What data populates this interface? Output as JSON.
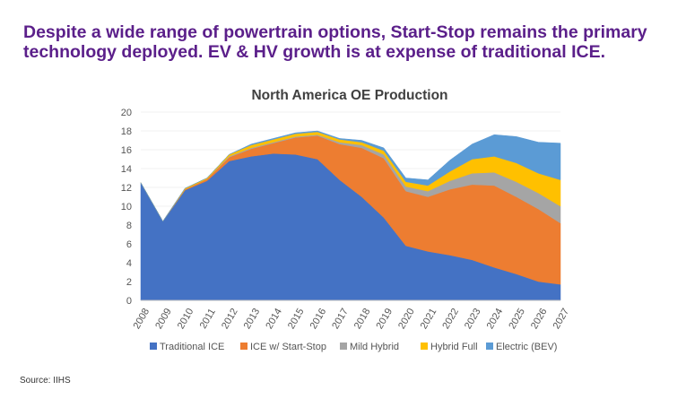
{
  "headline": {
    "line1": "Despite a wide range of powertrain options, Start-Stop remains the primary",
    "line2": "technology deployed. EV & HV growth is at expense of traditional ICE."
  },
  "source": "Source: IIHS",
  "colors": {
    "headline": "#5b1f8a",
    "traditional_ice": "#4472c4",
    "ice_start_stop": "#ed7d31",
    "mild_hybrid": "#a5a5a5",
    "hybrid_full": "#ffc000",
    "electric": "#5b9bd5"
  },
  "chart_data": {
    "type": "area",
    "stacked": true,
    "title": "North America OE Production",
    "xlabel": "",
    "ylabel": "",
    "ylim": [
      0,
      20
    ],
    "yticks": [
      0,
      2,
      4,
      6,
      8,
      10,
      12,
      14,
      16,
      18,
      20
    ],
    "x": [
      "2008",
      "2009",
      "2010",
      "2011",
      "2012",
      "2013",
      "2014",
      "2015",
      "2016",
      "2017",
      "2018",
      "2019",
      "2020",
      "2021",
      "2022",
      "2023",
      "2024",
      "2025",
      "2026",
      "2027"
    ],
    "legend_position": "bottom",
    "series": [
      {
        "name": "Traditional ICE",
        "color": "#4472c4",
        "values": [
          12.5,
          8.4,
          11.7,
          12.7,
          14.8,
          15.3,
          15.6,
          15.5,
          15.0,
          12.8,
          11.0,
          8.8,
          5.8,
          5.2,
          4.8,
          4.3,
          3.5,
          2.8,
          2.0,
          1.7
        ]
      },
      {
        "name": "ICE w/ Start-Stop",
        "color": "#ed7d31",
        "values": [
          0.0,
          0.0,
          0.1,
          0.2,
          0.4,
          0.8,
          1.1,
          1.8,
          2.5,
          3.8,
          5.2,
          6.3,
          5.8,
          5.8,
          7.0,
          8.0,
          8.7,
          8.2,
          7.7,
          6.5
        ]
      },
      {
        "name": "Mild Hybrid",
        "color": "#a5a5a5",
        "values": [
          0.0,
          0.0,
          0.0,
          0.0,
          0.1,
          0.1,
          0.1,
          0.1,
          0.1,
          0.2,
          0.3,
          0.4,
          0.5,
          0.6,
          0.9,
          1.2,
          1.4,
          1.6,
          1.7,
          1.8
        ]
      },
      {
        "name": "Hybrid Full",
        "color": "#ffc000",
        "values": [
          0.0,
          0.0,
          0.1,
          0.1,
          0.2,
          0.3,
          0.3,
          0.3,
          0.3,
          0.3,
          0.3,
          0.4,
          0.5,
          0.6,
          1.0,
          1.5,
          1.7,
          2.0,
          2.1,
          2.8
        ]
      },
      {
        "name": "Electric (BEV)",
        "color": "#5b9bd5",
        "values": [
          0.0,
          0.0,
          0.0,
          0.0,
          0.0,
          0.1,
          0.1,
          0.1,
          0.1,
          0.1,
          0.2,
          0.3,
          0.4,
          0.6,
          1.2,
          1.6,
          2.3,
          2.8,
          3.3,
          3.9
        ]
      }
    ]
  }
}
